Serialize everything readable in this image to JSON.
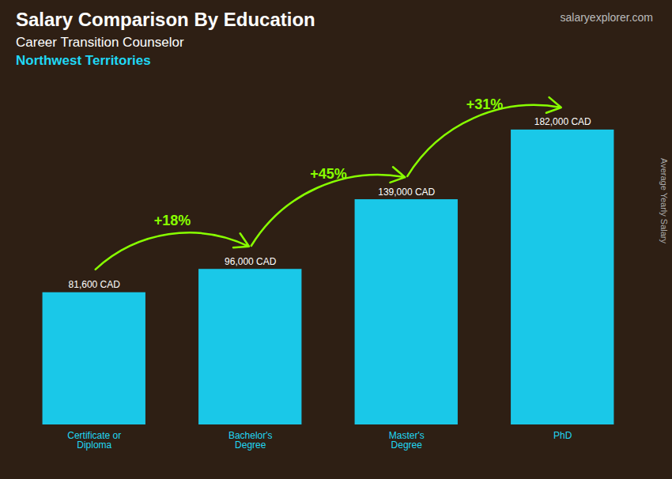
{
  "chart_data": {
    "type": "bar",
    "title": "Salary Comparison By Education",
    "subtitle": [
      "Career Transition Counselor",
      "Northwest Territories"
    ],
    "caption": "salaryexplorer.com",
    "ylabel": "Average Yearly Salary",
    "categories": [
      "Certificate or\nDiploma",
      "Bachelor's\nDegree",
      "Master's\nDegree",
      "PhD"
    ],
    "values": [
      81600,
      96000,
      139000,
      182000
    ],
    "value_labels": [
      "81,600 CAD",
      "96,000 CAD",
      "139,000 CAD",
      "182,000 CAD"
    ],
    "data_labels": true,
    "color": "#1ac8e8",
    "annotations": [
      {
        "text": "+18%",
        "color": "#88ff00"
      },
      {
        "text": "+45%",
        "color": "#88ff00"
      },
      {
        "text": "+31%",
        "color": "#88ff00"
      }
    ],
    "ylim": [
      0,
      200000
    ],
    "grid": false,
    "tick_labels": "x"
  }
}
